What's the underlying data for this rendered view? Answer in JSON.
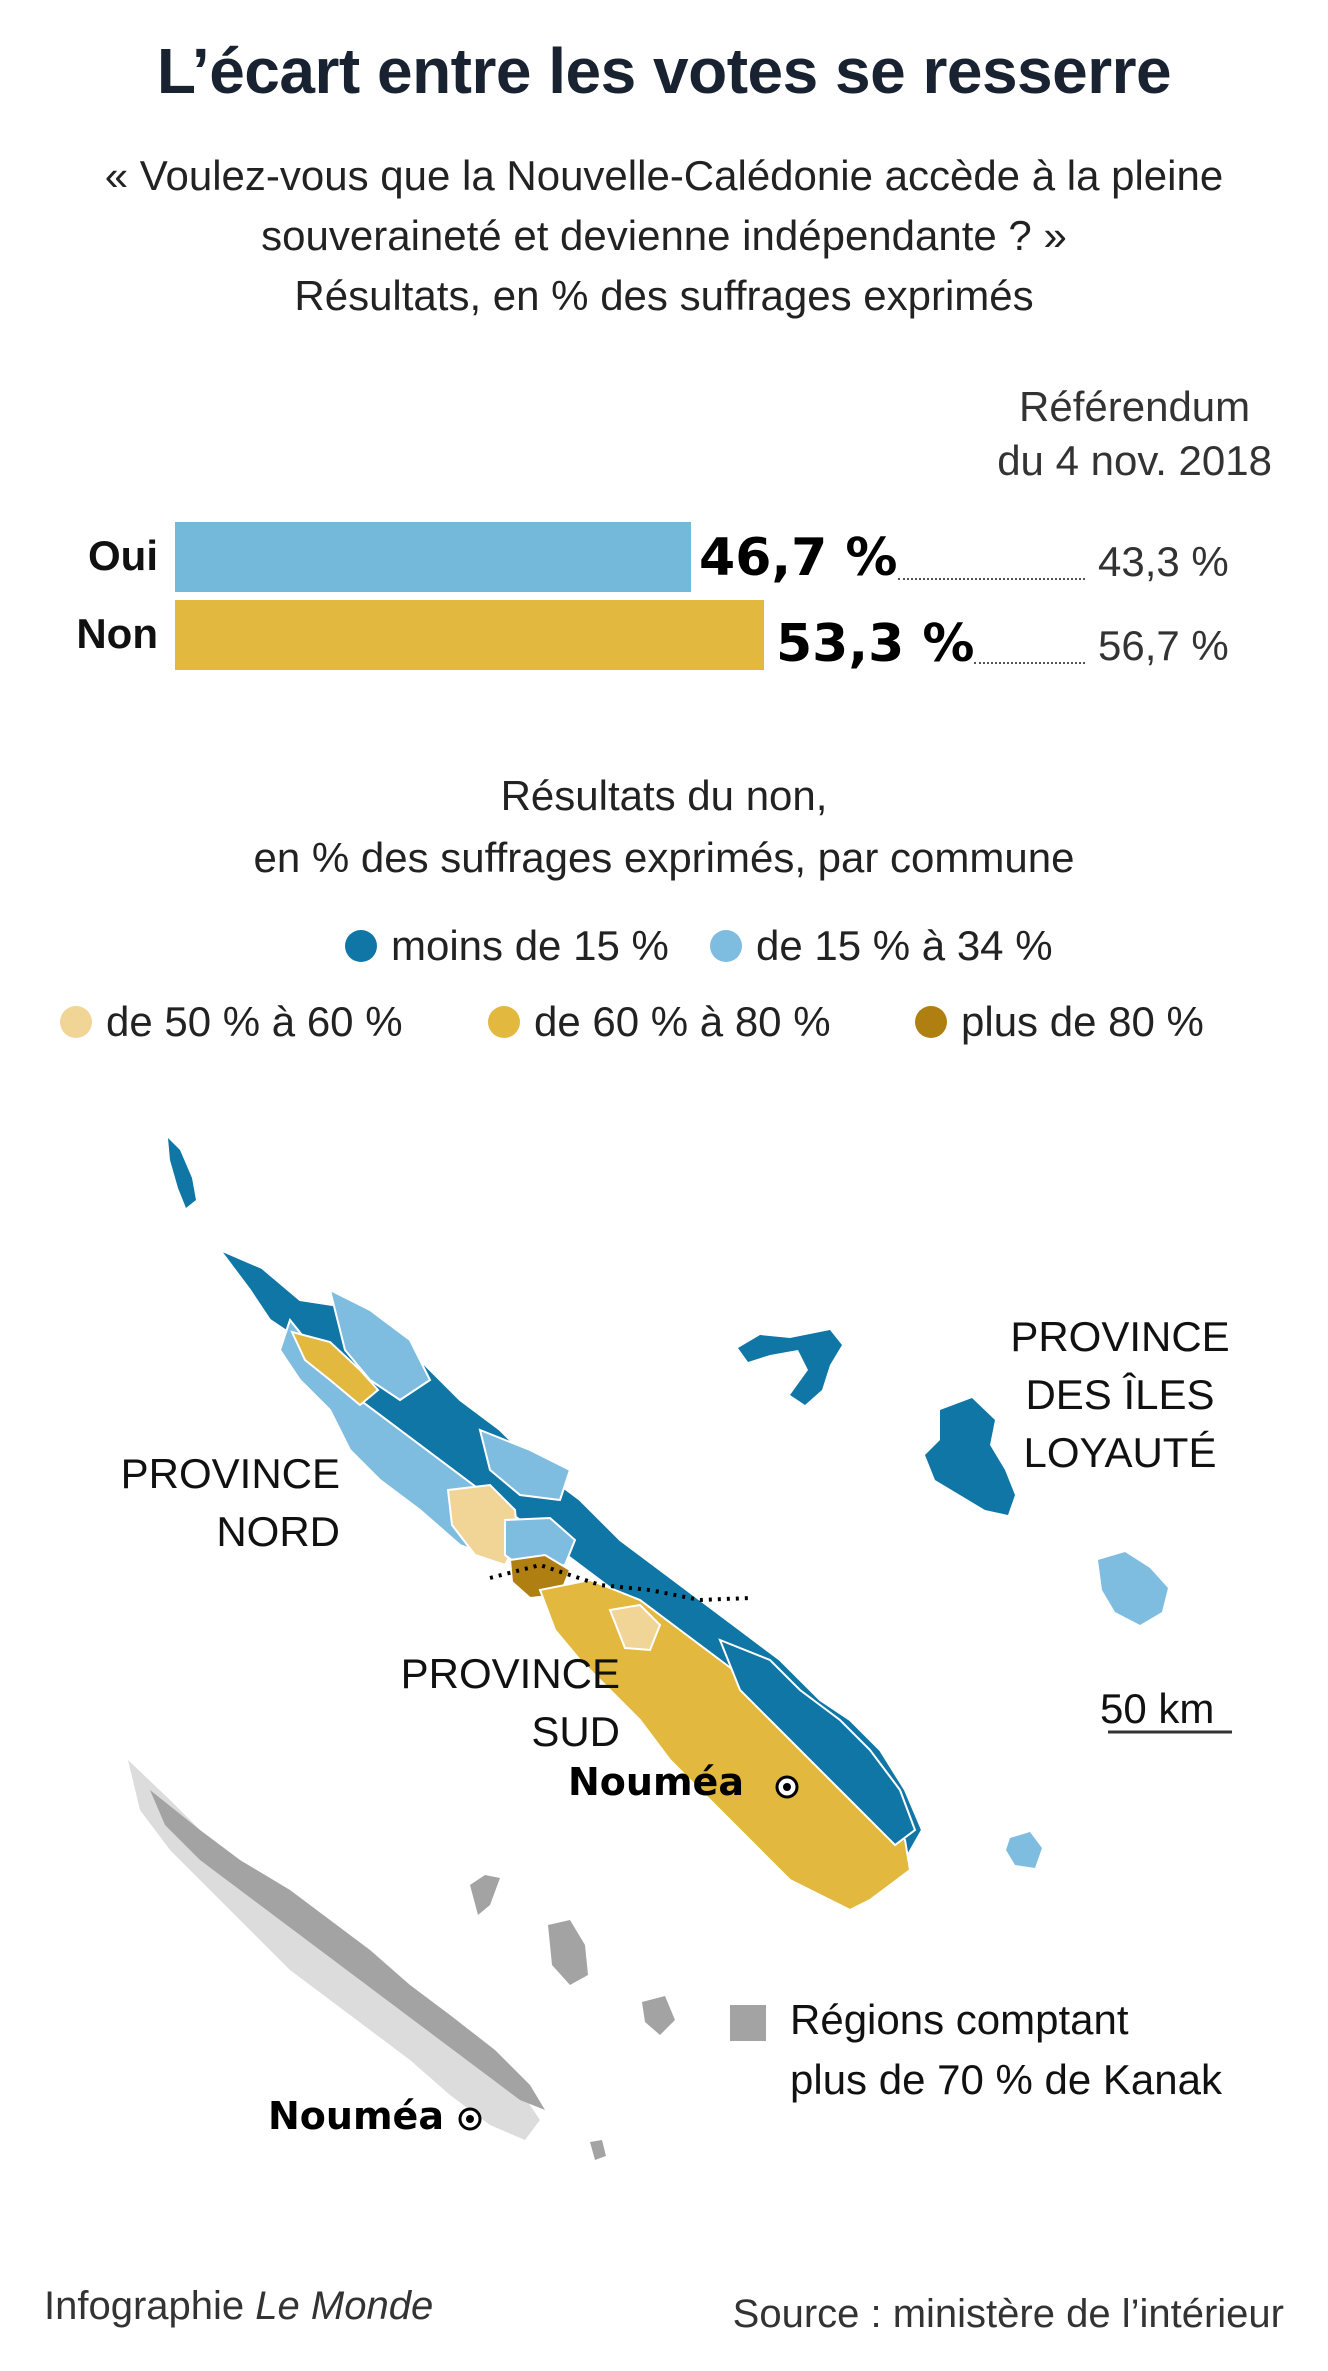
{
  "title": "L’écart entre les votes se resserre",
  "subtitle": {
    "line1": "« Voulez-vous que la Nouvelle-Calédonie accède à la pleine",
    "line2": "souveraineté et devienne indépendante ? »",
    "line3": "Résultats, en % des suffrages exprimés"
  },
  "reference": {
    "line1": "Référendum",
    "line2": "du 4 nov. 2018"
  },
  "chart_data": {
    "type": "bar",
    "categories": [
      "Oui",
      "Non"
    ],
    "series": [
      {
        "values": [
          46.7,
          53.3
        ],
        "labels": [
          "46,7 %",
          "53,3 %"
        ]
      },
      {
        "name": "Référendum du 4 nov. 2018",
        "values": [
          43.3,
          56.7
        ],
        "labels": [
          "43,3 %",
          "56,7 %"
        ]
      }
    ],
    "colors": {
      "oui": "#74b8da",
      "non": "#e3b83f"
    }
  },
  "map": {
    "title_line1": "Résultats du non,",
    "title_line2": "en % des suffrages exprimés, par commune",
    "legend": [
      {
        "label": "moins de 15 %",
        "color": "#0f76a6"
      },
      {
        "label": "de 15 % à 34 %",
        "color": "#7fbde0"
      },
      {
        "label": "de 50 % à 60 %",
        "color": "#f1d597"
      },
      {
        "label": "de 60 % à 80 %",
        "color": "#e3b83f"
      },
      {
        "label": "plus de 80 %",
        "color": "#b07f12"
      }
    ],
    "province_nord": {
      "line1": "PROVINCE",
      "line2": "NORD"
    },
    "province_sud": {
      "line1": "PROVINCE",
      "line2": "SUD"
    },
    "province_iles": {
      "line1": "PROVINCE",
      "line2": "DES ÎLES",
      "line3": "LOYAUTÉ"
    },
    "city": "Nouméa",
    "scale": "50 km"
  },
  "inset": {
    "legend_line1": "Régions comptant",
    "legend_line2": "plus de 70 % de Kanak",
    "legend_color": "#a3a3a3",
    "city": "Nouméa"
  },
  "footer": {
    "credit_prefix": "Infographie",
    "credit_name": "Le Monde",
    "source": "Source : ministère de l’intérieur"
  }
}
